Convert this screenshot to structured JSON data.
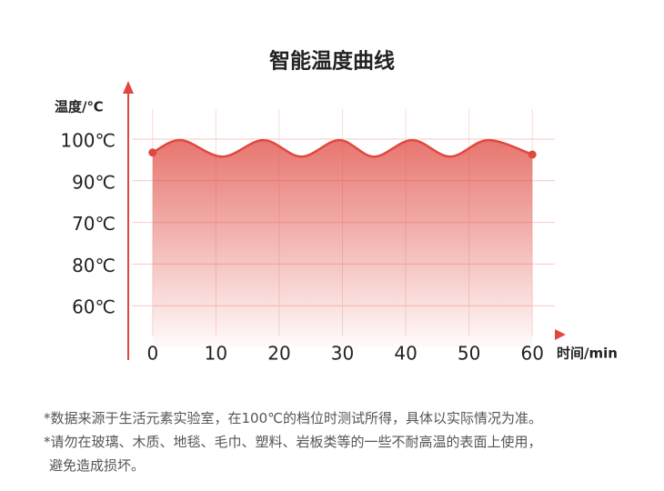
{
  "chart_data": {
    "type": "line",
    "title": "智能温度曲线",
    "y_label": "温度/℃",
    "x_label": "时间/min",
    "ycategories": [
      "100℃",
      "90℃",
      "70℃",
      "80℃",
      "60℃"
    ],
    "x": [
      0,
      4.5,
      11,
      17.5,
      23.5,
      29.5,
      35,
      41,
      47,
      53,
      60
    ],
    "series": [
      {
        "color": "#e0483f",
        "values": [
          97,
          100,
          96,
          100,
          96,
          100,
          96,
          100,
          96,
          100,
          96.5
        ]
      }
    ],
    "xlim": [
      -4,
      65
    ],
    "ylim": [
      47,
      113
    ],
    "xticks": [
      0,
      10,
      20,
      30,
      40,
      50,
      60
    ],
    "grid": true
  },
  "notes": [
    "*数据来源于生活元素实验室，在100℃的档位时测试所得，具体以实际情况为准。",
    "*请勿在玻璃、木质、地毯、毛巾、塑料、岩板类等的一些不耐高温的表面上使用，",
    "避免造成损坏。"
  ]
}
